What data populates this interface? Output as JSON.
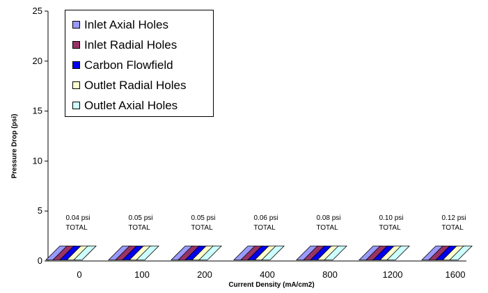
{
  "chart_data": {
    "type": "bar",
    "xlabel": "Current Density (mA/cm2)",
    "ylabel": "Pressure Drop (psi)",
    "ylim": [
      0,
      25
    ],
    "yticks": [
      0,
      5,
      10,
      15,
      20,
      25
    ],
    "categories": [
      "0",
      "100",
      "200",
      "400",
      "800",
      "1200",
      "1600"
    ],
    "series": [
      {
        "name": "Inlet Axial Holes",
        "color": "#9999ff",
        "values": [
          0.005,
          0.006,
          0.006,
          0.007,
          0.009,
          0.011,
          0.013
        ]
      },
      {
        "name": "Inlet Radial Holes",
        "color": "#993366",
        "values": [
          0.005,
          0.006,
          0.006,
          0.007,
          0.009,
          0.011,
          0.013
        ]
      },
      {
        "name": "Carbon Flowfield",
        "color": "#0000ee",
        "values": [
          0.02,
          0.026,
          0.026,
          0.032,
          0.044,
          0.056,
          0.07
        ]
      },
      {
        "name": "Outlet Radial Holes",
        "color": "#ffffcc",
        "values": [
          0.005,
          0.006,
          0.006,
          0.007,
          0.009,
          0.011,
          0.013
        ]
      },
      {
        "name": "Outlet Axial Holes",
        "color": "#ccffff",
        "values": [
          0.005,
          0.006,
          0.006,
          0.007,
          0.009,
          0.011,
          0.013
        ]
      }
    ],
    "annotations": [
      [
        "0.04 psi",
        "TOTAL"
      ],
      [
        "0.05 psi",
        "TOTAL"
      ],
      [
        "0.05 psi",
        "TOTAL"
      ],
      [
        "0.06 psi",
        "TOTAL"
      ],
      [
        "0.08 psi",
        "TOTAL"
      ],
      [
        "0.10 psi",
        "TOTAL"
      ],
      [
        "0.12 psi",
        "TOTAL"
      ]
    ],
    "legend_position": "top-left"
  }
}
